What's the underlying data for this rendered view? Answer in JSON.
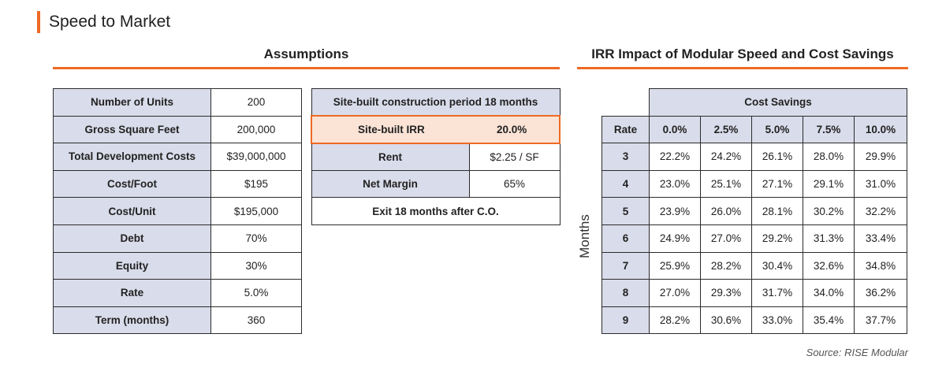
{
  "page": {
    "title": "Speed to Market",
    "source": "Source: RISE Modular"
  },
  "colors": {
    "accent": "#ee6a22",
    "label_fill": "#d9dcea",
    "highlight_fill": "#fbe3d6"
  },
  "assumptions": {
    "heading": "Assumptions",
    "rows": [
      {
        "label": "Number of Units",
        "value": "200"
      },
      {
        "label": "Gross Square Feet",
        "value": "200,000"
      },
      {
        "label": "Total Development Costs",
        "value": "$39,000,000"
      },
      {
        "label": "Cost/Foot",
        "value": "$195"
      },
      {
        "label": "Cost/Unit",
        "value": "$195,000"
      },
      {
        "label": "Debt",
        "value": "70%"
      },
      {
        "label": "Equity",
        "value": "30%"
      },
      {
        "label": "Rate",
        "value": "5.0%"
      },
      {
        "label": "Term (months)",
        "value": "360"
      }
    ]
  },
  "site_built": {
    "period": "Site-built construction period 18 months",
    "irr_label": "Site-built IRR",
    "irr_value": "20.0%",
    "rent_label": "Rent",
    "rent_value": "$2.25 / SF",
    "margin_label": "Net Margin",
    "margin_value": "65%",
    "exit": "Exit 18 months after C.O."
  },
  "irr": {
    "heading": "IRR Impact of Modular Speed and Cost Savings",
    "cost_savings_label": "Cost Savings",
    "rate_label": "Rate",
    "months_label": "Months",
    "columns": [
      "0.0%",
      "2.5%",
      "5.0%",
      "7.5%",
      "10.0%"
    ],
    "rows": [
      {
        "months": "3",
        "values": [
          "22.2%",
          "24.2%",
          "26.1%",
          "28.0%",
          "29.9%"
        ]
      },
      {
        "months": "4",
        "values": [
          "23.0%",
          "25.1%",
          "27.1%",
          "29.1%",
          "31.0%"
        ]
      },
      {
        "months": "5",
        "values": [
          "23.9%",
          "26.0%",
          "28.1%",
          "30.2%",
          "32.2%"
        ]
      },
      {
        "months": "6",
        "values": [
          "24.9%",
          "27.0%",
          "29.2%",
          "31.3%",
          "33.4%"
        ]
      },
      {
        "months": "7",
        "values": [
          "25.9%",
          "28.2%",
          "30.4%",
          "32.6%",
          "34.8%"
        ]
      },
      {
        "months": "8",
        "values": [
          "27.0%",
          "29.3%",
          "31.7%",
          "34.0%",
          "36.2%"
        ]
      },
      {
        "months": "9",
        "values": [
          "28.2%",
          "30.6%",
          "33.0%",
          "35.4%",
          "37.7%"
        ]
      }
    ]
  }
}
